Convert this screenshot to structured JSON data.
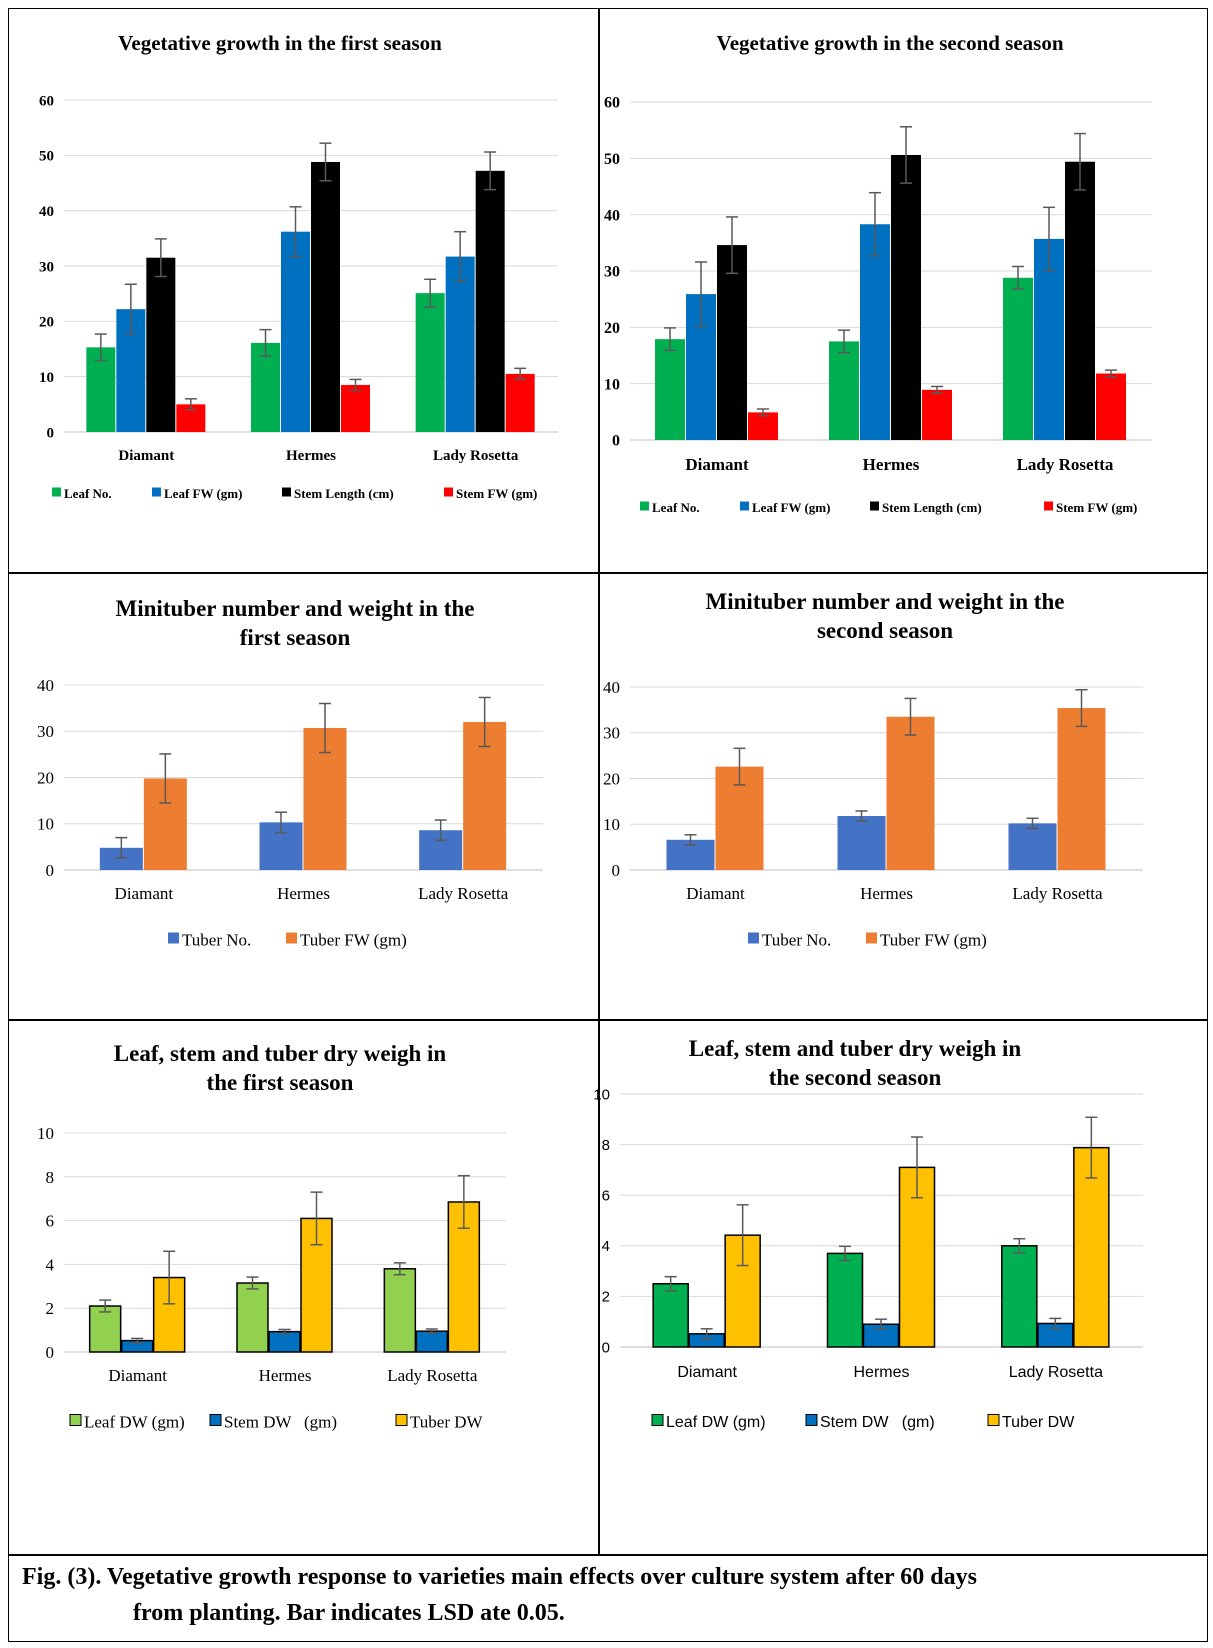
{
  "chart_data": [
    {
      "type": "bar",
      "title": "Vegetative growth in the first season",
      "categories": [
        "Diamant",
        "Hermes",
        "Lady Rosetta"
      ],
      "ylim": [
        0,
        60
      ],
      "yticks": [
        0,
        10,
        20,
        30,
        40,
        50,
        60
      ],
      "grid": true,
      "legend": "bottom",
      "series": [
        {
          "name": "Leaf No.",
          "color": "#00b050",
          "values": [
            15.3,
            16.1,
            25.1
          ],
          "errors": [
            2.4,
            2.4,
            2.5
          ]
        },
        {
          "name": "Leaf FW (gm)",
          "color": "#0070c0",
          "values": [
            22.2,
            36.2,
            31.7
          ],
          "errors": [
            4.5,
            4.5,
            4.5
          ]
        },
        {
          "name": "Stem Length (cm)",
          "color": "#000000",
          "values": [
            31.5,
            48.8,
            47.2
          ],
          "errors": [
            3.4,
            3.4,
            3.4
          ]
        },
        {
          "name": "Stem FW (gm)",
          "color": "#ff0000",
          "values": [
            5.0,
            8.5,
            10.5
          ],
          "errors": [
            1.0,
            1.0,
            1.0
          ]
        }
      ]
    },
    {
      "type": "bar",
      "title": "Vegetative growth in the second season",
      "categories": [
        "Diamant",
        "Hermes",
        "Lady Rosetta"
      ],
      "ylim": [
        0,
        60
      ],
      "yticks": [
        0,
        10,
        20,
        30,
        40,
        50,
        60
      ],
      "grid": true,
      "legend": "bottom",
      "series": [
        {
          "name": "Leaf No.",
          "color": "#00b050",
          "values": [
            17.9,
            17.5,
            28.8
          ],
          "errors": [
            2.0,
            2.0,
            2.0
          ]
        },
        {
          "name": "Leaf FW (gm)",
          "color": "#0070c0",
          "values": [
            25.9,
            38.3,
            35.7
          ],
          "errors": [
            5.7,
            5.6,
            5.6
          ]
        },
        {
          "name": "Stem Length (cm)",
          "color": "#000000",
          "values": [
            34.6,
            50.6,
            49.4
          ],
          "errors": [
            5.0,
            5.0,
            5.0
          ]
        },
        {
          "name": "Stem FW (gm)",
          "color": "#ff0000",
          "values": [
            4.9,
            8.9,
            11.8
          ],
          "errors": [
            0.6,
            0.6,
            0.6
          ]
        }
      ]
    },
    {
      "type": "bar",
      "title": "Minituber number and weight in the first season",
      "categories": [
        "Diamant",
        "Hermes",
        "Lady Rosetta"
      ],
      "ylim": [
        0,
        40
      ],
      "yticks": [
        0,
        10,
        20,
        30,
        40
      ],
      "grid": true,
      "legend": "bottom",
      "series": [
        {
          "name": "Tuber No.",
          "color": "#4472c4",
          "values": [
            4.8,
            10.3,
            8.6
          ],
          "errors": [
            2.2,
            2.2,
            2.2
          ]
        },
        {
          "name": "Tuber FW (gm)",
          "color": "#ed7d31",
          "values": [
            19.8,
            30.7,
            32.0
          ],
          "errors": [
            5.3,
            5.3,
            5.3
          ]
        }
      ]
    },
    {
      "type": "bar",
      "title": "Minituber number and weight in the second season",
      "categories": [
        "Diamant",
        "Hermes",
        "Lady Rosetta"
      ],
      "ylim": [
        0,
        40
      ],
      "yticks": [
        0,
        10,
        20,
        30,
        40
      ],
      "grid": true,
      "legend": "bottom",
      "series": [
        {
          "name": "Tuber No.",
          "color": "#4472c4",
          "values": [
            6.6,
            11.8,
            10.2
          ],
          "errors": [
            1.1,
            1.1,
            1.1
          ]
        },
        {
          "name": "Tuber FW (gm)",
          "color": "#ed7d31",
          "values": [
            22.6,
            33.5,
            35.4
          ],
          "errors": [
            4.0,
            4.0,
            4.0
          ]
        }
      ]
    },
    {
      "type": "bar",
      "title": "Leaf, stem and tuber dry weigh in the first season",
      "categories": [
        "Diamant",
        "Hermes",
        "Lady Rosetta"
      ],
      "ylim": [
        0,
        10
      ],
      "yticks": [
        0,
        2,
        4,
        6,
        8,
        10
      ],
      "grid": true,
      "legend": "bottom",
      "series": [
        {
          "name": "Leaf DW (gm)",
          "color": "#92d050",
          "values": [
            2.1,
            3.15,
            3.8
          ],
          "errors": [
            0.27,
            0.27,
            0.27
          ]
        },
        {
          "name": "Stem DW   (gm)",
          "color": "#0070c0",
          "values": [
            0.52,
            0.93,
            0.95
          ],
          "errors": [
            0.1,
            0.1,
            0.1
          ]
        },
        {
          "name": "Tuber DW",
          "color": "#ffc000",
          "values": [
            3.4,
            6.1,
            6.85
          ],
          "errors": [
            1.2,
            1.2,
            1.2
          ]
        }
      ]
    },
    {
      "type": "bar",
      "title": "Leaf, stem and tuber dry weigh in the second season",
      "categories": [
        "Diamant",
        "Hermes",
        "Lady Rosetta"
      ],
      "ylim": [
        0,
        10
      ],
      "yticks": [
        0,
        2,
        4,
        6,
        8,
        10
      ],
      "grid": true,
      "legend": "bottom",
      "series": [
        {
          "name": "Leaf DW (gm)",
          "color": "#00b050",
          "values": [
            2.5,
            3.7,
            4.0
          ],
          "errors": [
            0.28,
            0.28,
            0.28
          ]
        },
        {
          "name": "Stem DW   (gm)",
          "color": "#0070c0",
          "values": [
            0.52,
            0.9,
            0.93
          ],
          "errors": [
            0.2,
            0.2,
            0.2
          ]
        },
        {
          "name": "Tuber DW",
          "color": "#ffc000",
          "values": [
            4.42,
            7.1,
            7.88
          ],
          "errors": [
            1.2,
            1.2,
            1.2
          ]
        }
      ]
    }
  ],
  "caption": {
    "line1": "Fig. (3). Vegetative growth response to varieties main effects over culture system after 60 days",
    "line2": "from planting. Bar indicates LSD ate 0.05."
  }
}
